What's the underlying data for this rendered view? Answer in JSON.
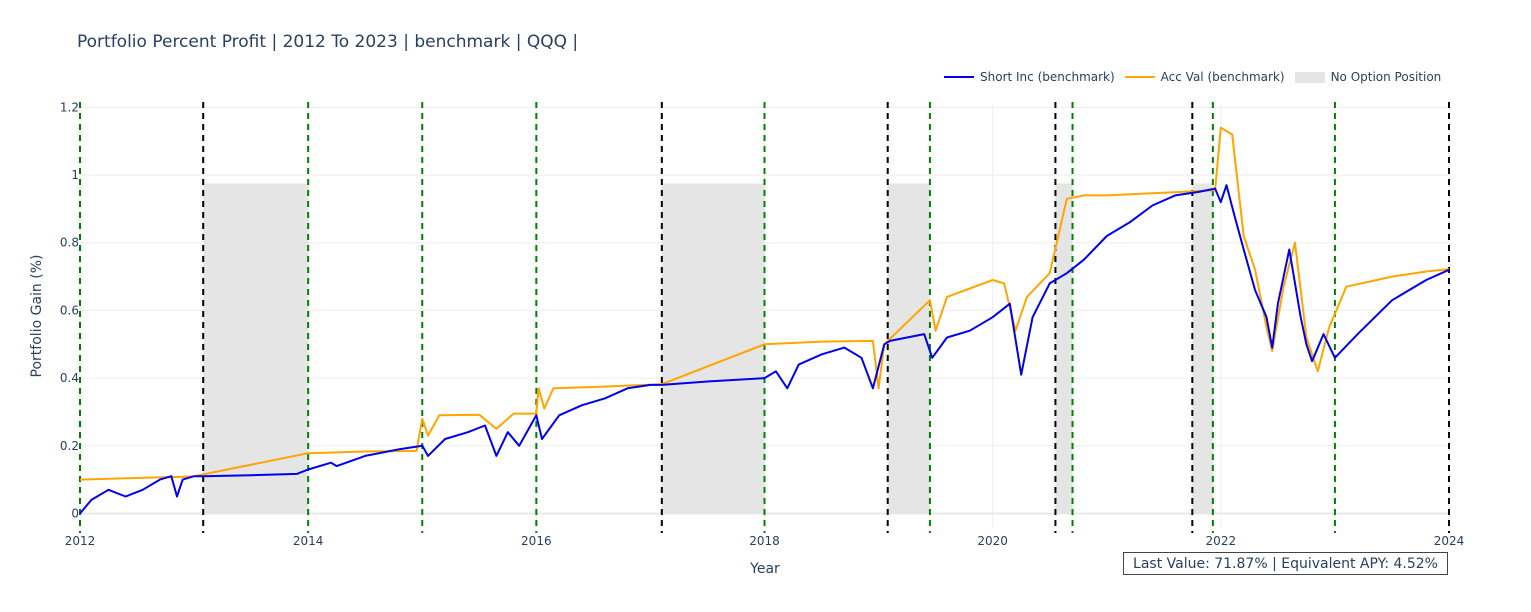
{
  "chart_data": {
    "type": "line",
    "title": "Portfolio Percent Profit | 2012 To 2023 | benchmark | QQQ |",
    "xlabel": "Year",
    "ylabel": "Portfolio Gain (%)",
    "xlim": [
      2012.0,
      2024.0
    ],
    "ylim": [
      -0.04,
      1.21
    ],
    "x_ticks": [
      2012,
      2014,
      2016,
      2018,
      2020,
      2022,
      2024
    ],
    "x_tick_labels": [
      "2012",
      "2014",
      "2016",
      "2018",
      "2020",
      "2022",
      "2024"
    ],
    "y_ticks": [
      0,
      0.2,
      0.4,
      0.6,
      0.8,
      1,
      1.2
    ],
    "y_tick_labels": [
      "0",
      "0.2",
      "0.4",
      "0.6",
      "0.8",
      "1",
      "1.2"
    ],
    "grid": true,
    "legend_position": "top-right",
    "series": [
      {
        "name": "Short Inc (benchmark)",
        "color": "#0000ee",
        "points": [
          [
            2012.0,
            0.0
          ],
          [
            2012.1,
            0.04
          ],
          [
            2012.25,
            0.07
          ],
          [
            2012.4,
            0.05
          ],
          [
            2012.55,
            0.07
          ],
          [
            2012.7,
            0.1
          ],
          [
            2012.8,
            0.11
          ],
          [
            2012.85,
            0.05
          ],
          [
            2012.9,
            0.1
          ],
          [
            2013.0,
            0.11
          ],
          [
            2013.08,
            0.11
          ],
          [
            2013.5,
            0.113
          ],
          [
            2013.9,
            0.117
          ],
          [
            2014.0,
            0.13
          ],
          [
            2014.2,
            0.15
          ],
          [
            2014.25,
            0.14
          ],
          [
            2014.5,
            0.17
          ],
          [
            2014.8,
            0.19
          ],
          [
            2015.0,
            0.2
          ],
          [
            2015.05,
            0.17
          ],
          [
            2015.2,
            0.22
          ],
          [
            2015.4,
            0.24
          ],
          [
            2015.55,
            0.26
          ],
          [
            2015.65,
            0.17
          ],
          [
            2015.75,
            0.24
          ],
          [
            2015.85,
            0.2
          ],
          [
            2016.0,
            0.29
          ],
          [
            2016.05,
            0.22
          ],
          [
            2016.2,
            0.29
          ],
          [
            2016.4,
            0.32
          ],
          [
            2016.6,
            0.34
          ],
          [
            2016.8,
            0.37
          ],
          [
            2017.0,
            0.38
          ],
          [
            2017.1,
            0.38
          ],
          [
            2017.5,
            0.39
          ],
          [
            2018.0,
            0.4
          ],
          [
            2018.1,
            0.42
          ],
          [
            2018.2,
            0.37
          ],
          [
            2018.3,
            0.44
          ],
          [
            2018.5,
            0.47
          ],
          [
            2018.7,
            0.49
          ],
          [
            2018.85,
            0.46
          ],
          [
            2018.95,
            0.37
          ],
          [
            2019.05,
            0.5
          ],
          [
            2019.1,
            0.51
          ],
          [
            2019.4,
            0.53
          ],
          [
            2019.47,
            0.46
          ],
          [
            2019.6,
            0.52
          ],
          [
            2019.8,
            0.54
          ],
          [
            2020.0,
            0.58
          ],
          [
            2020.15,
            0.62
          ],
          [
            2020.25,
            0.41
          ],
          [
            2020.35,
            0.58
          ],
          [
            2020.5,
            0.68
          ],
          [
            2020.65,
            0.71
          ],
          [
            2020.8,
            0.75
          ],
          [
            2021.0,
            0.82
          ],
          [
            2021.2,
            0.86
          ],
          [
            2021.4,
            0.91
          ],
          [
            2021.6,
            0.94
          ],
          [
            2021.8,
            0.95
          ],
          [
            2021.95,
            0.96
          ],
          [
            2022.0,
            0.92
          ],
          [
            2022.05,
            0.97
          ],
          [
            2022.12,
            0.88
          ],
          [
            2022.2,
            0.78
          ],
          [
            2022.3,
            0.66
          ],
          [
            2022.4,
            0.58
          ],
          [
            2022.45,
            0.49
          ],
          [
            2022.5,
            0.62
          ],
          [
            2022.6,
            0.78
          ],
          [
            2022.7,
            0.58
          ],
          [
            2022.75,
            0.5
          ],
          [
            2022.8,
            0.45
          ],
          [
            2022.9,
            0.53
          ],
          [
            2023.0,
            0.46
          ],
          [
            2023.2,
            0.53
          ],
          [
            2023.5,
            0.63
          ],
          [
            2023.8,
            0.69
          ],
          [
            2024.0,
            0.72
          ]
        ]
      },
      {
        "name": "Acc Val (benchmark)",
        "color": "#ffa500",
        "points": [
          [
            2012.0,
            0.1
          ],
          [
            2012.3,
            0.103
          ],
          [
            2012.6,
            0.106
          ],
          [
            2012.9,
            0.108
          ],
          [
            2013.0,
            0.11
          ],
          [
            2014.0,
            0.178
          ],
          [
            2014.5,
            0.183
          ],
          [
            2014.95,
            0.185
          ],
          [
            2015.0,
            0.28
          ],
          [
            2015.05,
            0.23
          ],
          [
            2015.15,
            0.29
          ],
          [
            2015.5,
            0.292
          ],
          [
            2015.65,
            0.25
          ],
          [
            2015.8,
            0.295
          ],
          [
            2016.0,
            0.295
          ],
          [
            2016.02,
            0.37
          ],
          [
            2016.07,
            0.31
          ],
          [
            2016.15,
            0.37
          ],
          [
            2016.6,
            0.375
          ],
          [
            2017.1,
            0.382
          ],
          [
            2018.0,
            0.5
          ],
          [
            2018.5,
            0.508
          ],
          [
            2018.95,
            0.51
          ],
          [
            2019.0,
            0.37
          ],
          [
            2019.05,
            0.5
          ],
          [
            2019.45,
            0.63
          ],
          [
            2019.5,
            0.54
          ],
          [
            2019.6,
            0.64
          ],
          [
            2020.0,
            0.69
          ],
          [
            2020.1,
            0.68
          ],
          [
            2020.2,
            0.54
          ],
          [
            2020.3,
            0.64
          ],
          [
            2020.5,
            0.71
          ],
          [
            2020.65,
            0.93
          ],
          [
            2020.8,
            0.94
          ],
          [
            2021.0,
            0.94
          ],
          [
            2021.5,
            0.948
          ],
          [
            2021.95,
            0.955
          ],
          [
            2022.0,
            1.14
          ],
          [
            2022.1,
            1.12
          ],
          [
            2022.2,
            0.82
          ],
          [
            2022.3,
            0.72
          ],
          [
            2022.4,
            0.55
          ],
          [
            2022.45,
            0.48
          ],
          [
            2022.55,
            0.67
          ],
          [
            2022.65,
            0.8
          ],
          [
            2022.75,
            0.52
          ],
          [
            2022.85,
            0.42
          ],
          [
            2022.95,
            0.55
          ],
          [
            2023.05,
            0.63
          ],
          [
            2023.1,
            0.67
          ],
          [
            2023.5,
            0.7
          ],
          [
            2023.8,
            0.715
          ],
          [
            2024.0,
            0.722
          ]
        ]
      }
    ],
    "no_option_position": {
      "name": "No Option Position",
      "color": "#e5e5e5",
      "y_range": [
        0,
        0.975
      ],
      "spans": [
        [
          2013.08,
          2014.0
        ],
        [
          2017.1,
          2018.0
        ],
        [
          2019.08,
          2019.45
        ],
        [
          2020.55,
          2020.7
        ],
        [
          2021.75,
          2021.93
        ]
      ]
    },
    "vlines_black": [
      2013.08,
      2017.1,
      2019.08,
      2020.55,
      2021.75,
      2024.0
    ],
    "vlines_green": [
      2012.0,
      2014.0,
      2015.0,
      2016.0,
      2018.0,
      2019.45,
      2020.7,
      2021.93,
      2023.0
    ]
  },
  "annotation": "Last Value: 71.87% | Equivalent APY: 4.52%"
}
